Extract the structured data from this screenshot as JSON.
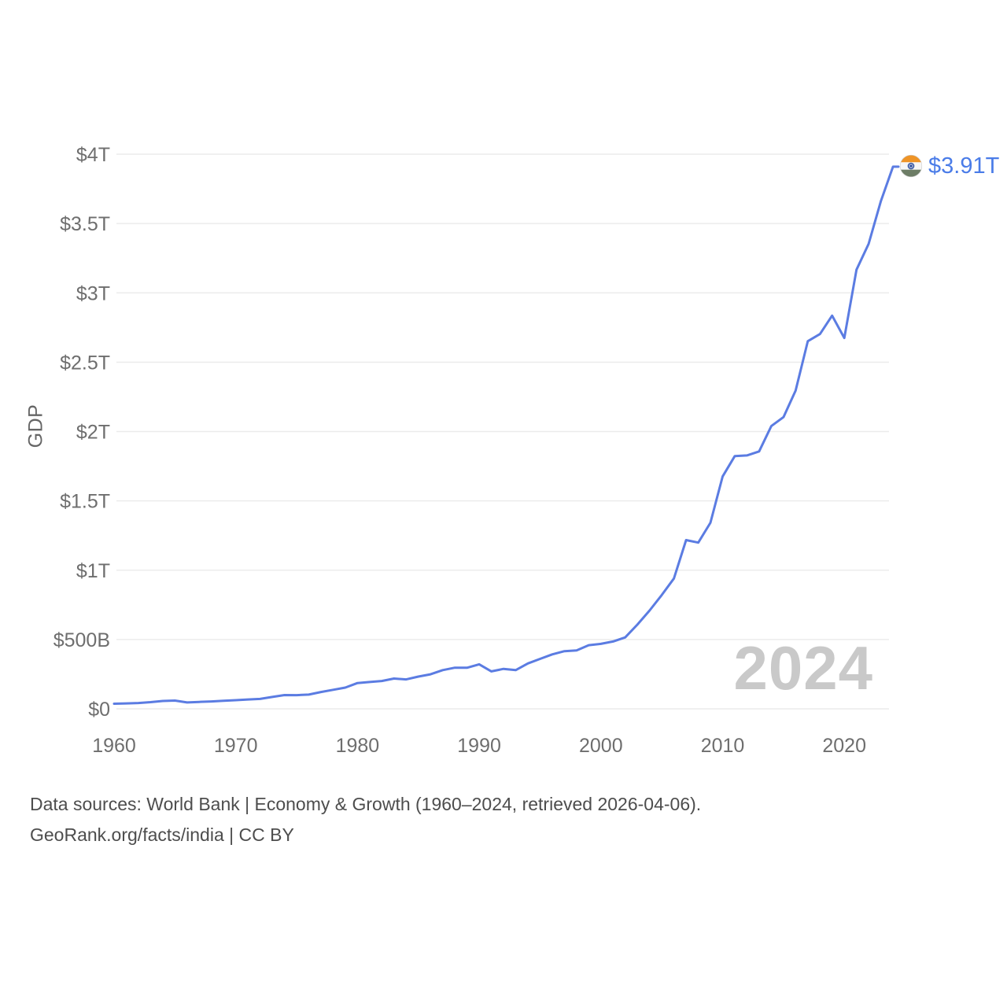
{
  "chart": {
    "y_axis_label": "GDP",
    "watermark_year": "2024",
    "end_label_value": "$3.91T",
    "end_label_flag": "india-flag",
    "colors": {
      "line": "#5b7ce2",
      "grid": "#ececec",
      "tick_text": "#6e6e6e",
      "end_label_blue": "#4a7ce8",
      "watermark": "#c9c9c9",
      "flag_saffron": "#ef9426",
      "flag_white": "#f6f6f6",
      "flag_green": "#6d7d66",
      "flag_navy": "#2c4d9c"
    }
  },
  "footer": {
    "line1": "Data sources: World Bank | Economy & Growth (1960–2024, retrieved 2026-04-06).",
    "line2": "GeoRank.org/facts/india | CC BY"
  },
  "chart_data": {
    "type": "line",
    "title": "",
    "xlabel": "",
    "ylabel": "GDP",
    "unit": "billions of current US$",
    "legend": "none",
    "grid": "horizontal",
    "ylim": [
      0,
      4000
    ],
    "xlim": [
      1960,
      2024
    ],
    "end_annotation": "$3.91T",
    "yticks": [
      {
        "label": "$4T",
        "value": 4000
      },
      {
        "label": "$3.5T",
        "value": 3500
      },
      {
        "label": "$3T",
        "value": 3000
      },
      {
        "label": "$2.5T",
        "value": 2500
      },
      {
        "label": "$2T",
        "value": 2000
      },
      {
        "label": "$1.5T",
        "value": 1500
      },
      {
        "label": "$1T",
        "value": 1000
      },
      {
        "label": "$500B",
        "value": 500
      },
      {
        "label": "$0",
        "value": 0
      }
    ],
    "xticks": [
      1960,
      1970,
      1980,
      1990,
      2000,
      2010,
      2020
    ],
    "x": [
      1960,
      1961,
      1962,
      1963,
      1964,
      1965,
      1966,
      1967,
      1968,
      1969,
      1970,
      1971,
      1972,
      1973,
      1974,
      1975,
      1976,
      1977,
      1978,
      1979,
      1980,
      1981,
      1982,
      1983,
      1984,
      1985,
      1986,
      1987,
      1988,
      1989,
      1990,
      1991,
      1992,
      1993,
      1994,
      1995,
      1996,
      1997,
      1998,
      1999,
      2000,
      2001,
      2002,
      2003,
      2004,
      2005,
      2006,
      2007,
      2008,
      2009,
      2010,
      2011,
      2012,
      2013,
      2014,
      2015,
      2016,
      2017,
      2018,
      2019,
      2020,
      2021,
      2022,
      2023,
      2024
    ],
    "values": [
      37.03,
      39.23,
      42.16,
      48.42,
      56.48,
      59.55,
      45.87,
      50.13,
      53.09,
      58.45,
      62.42,
      67.35,
      71.46,
      85.52,
      99.53,
      98.47,
      102.72,
      121.49,
      137.3,
      152.99,
      186.33,
      193.49,
      200.72,
      218.26,
      212.16,
      232.51,
      248.99,
      279.03,
      296.59,
      296.04,
      320.98,
      270.11,
      288.21,
      279.3,
      327.28,
      360.28,
      392.9,
      415.87,
      421.35,
      458.82,
      468.39,
      485.44,
      514.94,
      607.7,
      709.15,
      820.38,
      940.26,
      1216.74,
      1198.9,
      1341.89,
      1675.62,
      1823.05,
      1827.64,
      1856.72,
      2039.13,
      2103.59,
      2294.8,
      2651.47,
      2702.93,
      2835.61,
      2674.85,
      3167.27,
      3353.47,
      3660.0,
      3910.0
    ]
  }
}
